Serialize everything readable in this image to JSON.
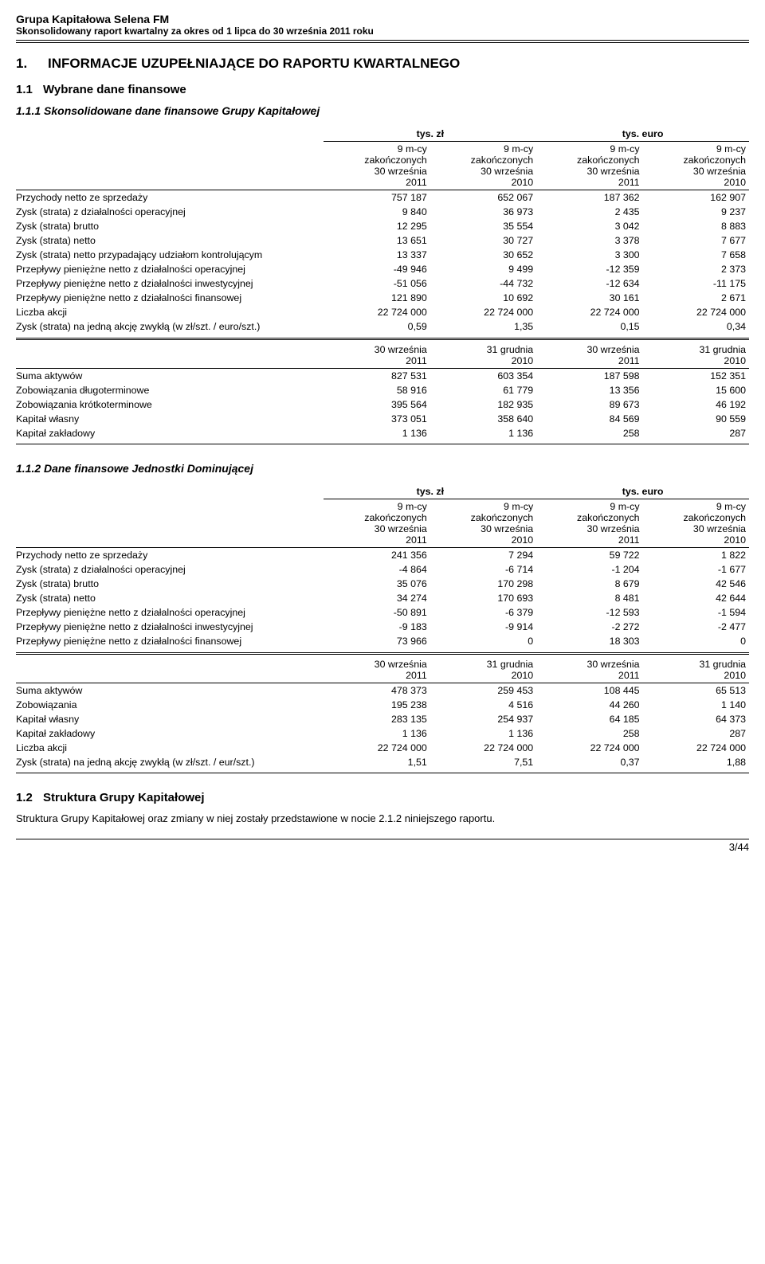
{
  "header": {
    "company": "Grupa Kapitałowa Selena FM",
    "subtitle": "Skonsolidowany raport kwartalny za okres od 1 lipca do 30 września 2011 roku"
  },
  "sec1": {
    "num": "1.",
    "title": "INFORMACJE UZUPEŁNIAJĄCE DO RAPORTU KWARTALNEGO"
  },
  "sec11": {
    "num": "1.1",
    "title": "Wybrane dane finansowe"
  },
  "sec111": {
    "num": "1.1.1",
    "title": "Skonsolidowane dane finansowe Grupy Kapitałowej"
  },
  "sec112": {
    "num": "1.1.2",
    "title": "Dane finansowe Jednostki Dominującej"
  },
  "sec12": {
    "num": "1.2",
    "title": "Struktura Grupy Kapitałowej"
  },
  "paragraph12": "Struktura Grupy Kapitałowej oraz zmiany w niej zostały przedstawione w nocie 2.1.2 niniejszego raportu.",
  "units": {
    "zl": "tys. zł",
    "eur": "tys. euro"
  },
  "colhdr9m": "9 m-cy\nzakończonych\n30 września",
  "colhdrDate": "30 września",
  "colhdrDateDec": "31 grudnia",
  "years": {
    "y11": "2011",
    "y10": "2010"
  },
  "tableA1": {
    "rows": [
      {
        "lbl": "Przychody netto ze sprzedaży",
        "c": [
          "757 187",
          "652 067",
          "187 362",
          "162 907"
        ]
      },
      {
        "lbl": "Zysk (strata) z działalności operacyjnej",
        "c": [
          "9 840",
          "36 973",
          "2 435",
          "9 237"
        ]
      },
      {
        "lbl": "Zysk (strata) brutto",
        "c": [
          "12 295",
          "35 554",
          "3 042",
          "8 883"
        ]
      },
      {
        "lbl": "Zysk (strata) netto",
        "c": [
          "13 651",
          "30 727",
          "3 378",
          "7 677"
        ]
      },
      {
        "lbl": "Zysk (strata) netto przypadający udziałom kontrolującym",
        "c": [
          "13 337",
          "30 652",
          "3 300",
          "7 658"
        ]
      },
      {
        "lbl": "Przepływy pieniężne netto z działalności operacyjnej",
        "c": [
          "-49 946",
          "9 499",
          "-12 359",
          "2 373"
        ]
      },
      {
        "lbl": "Przepływy pieniężne netto z działalności inwestycyjnej",
        "c": [
          "-51 056",
          "-44 732",
          "-12 634",
          "-11 175"
        ]
      },
      {
        "lbl": "Przepływy pieniężne netto z działalności finansowej",
        "c": [
          "121 890",
          "10 692",
          "30 161",
          "2 671"
        ]
      },
      {
        "lbl": "Liczba akcji",
        "c": [
          "22 724 000",
          "22 724 000",
          "22 724 000",
          "22 724 000"
        ]
      },
      {
        "lbl": "Zysk (strata) na jedną akcję zwykłą (w zł/szt. / euro/szt.)",
        "c": [
          "0,59",
          "1,35",
          "0,15",
          "0,34"
        ]
      }
    ]
  },
  "tableA2": {
    "rows": [
      {
        "lbl": "Suma aktywów",
        "c": [
          "827 531",
          "603 354",
          "187 598",
          "152 351"
        ]
      },
      {
        "lbl": "Zobowiązania długoterminowe",
        "c": [
          "58 916",
          "61 779",
          "13 356",
          "15 600"
        ]
      },
      {
        "lbl": "Zobowiązania krótkoterminowe",
        "c": [
          "395 564",
          "182 935",
          "89 673",
          "46 192"
        ]
      },
      {
        "lbl": "Kapitał własny",
        "c": [
          "373 051",
          "358 640",
          "84 569",
          "90 559"
        ]
      },
      {
        "lbl": "Kapitał zakładowy",
        "c": [
          "1 136",
          "1 136",
          "258",
          "287"
        ]
      }
    ]
  },
  "tableB1": {
    "rows": [
      {
        "lbl": "Przychody netto ze sprzedaży",
        "c": [
          "241 356",
          "7 294",
          "59 722",
          "1 822"
        ]
      },
      {
        "lbl": "Zysk (strata) z działalności operacyjnej",
        "c": [
          "-4 864",
          "-6 714",
          "-1 204",
          "-1 677"
        ]
      },
      {
        "lbl": "Zysk (strata) brutto",
        "c": [
          "35 076",
          "170 298",
          "8 679",
          "42 546"
        ]
      },
      {
        "lbl": "Zysk (strata) netto",
        "c": [
          "34 274",
          "170 693",
          "8 481",
          "42 644"
        ]
      },
      {
        "lbl": "Przepływy pieniężne netto z działalności operacyjnej",
        "c": [
          "-50 891",
          "-6 379",
          "-12 593",
          "-1 594"
        ]
      },
      {
        "lbl": "Przepływy pieniężne netto z działalności inwestycyjnej",
        "c": [
          "-9 183",
          "-9 914",
          "-2 272",
          "-2 477"
        ]
      },
      {
        "lbl": "Przepływy pieniężne netto z działalności finansowej",
        "c": [
          "73 966",
          "0",
          "18 303",
          "0"
        ]
      }
    ]
  },
  "tableB2": {
    "rows": [
      {
        "lbl": "Suma aktywów",
        "c": [
          "478 373",
          "259 453",
          "108 445",
          "65 513"
        ]
      },
      {
        "lbl": "Zobowiązania",
        "c": [
          "195 238",
          "4 516",
          "44 260",
          "1 140"
        ]
      },
      {
        "lbl": "Kapitał własny",
        "c": [
          "283 135",
          "254 937",
          "64 185",
          "64 373"
        ]
      },
      {
        "lbl": "Kapitał zakładowy",
        "c": [
          "1 136",
          "1 136",
          "258",
          "287"
        ]
      },
      {
        "lbl": "Liczba akcji",
        "c": [
          "22 724 000",
          "22 724 000",
          "22 724 000",
          "22 724 000"
        ]
      },
      {
        "lbl": "Zysk (strata) na jedną akcję zwykłą (w zł/szt. / eur/szt.)",
        "c": [
          "1,51",
          "7,51",
          "0,37",
          "1,88"
        ]
      }
    ]
  },
  "pagenum": "3/44"
}
